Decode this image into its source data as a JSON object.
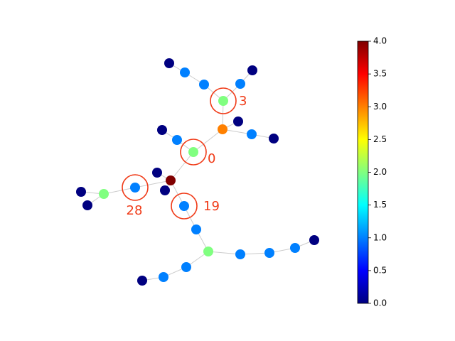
{
  "chart_data": {
    "type": "network",
    "nodes": [
      {
        "value": 4
      },
      {
        "value": 3
      },
      {
        "value": 2,
        "label": "3"
      },
      {
        "value": 2,
        "label": "0"
      },
      {
        "value": 2
      },
      {
        "value": 2
      },
      {
        "value": 1
      },
      {
        "value": 1
      },
      {
        "value": 1
      },
      {
        "value": 1
      },
      {
        "value": 1
      },
      {
        "value": 1,
        "label": "28"
      },
      {
        "value": 1,
        "label": "19"
      },
      {
        "value": 1
      },
      {
        "value": 1
      },
      {
        "value": 1
      },
      {
        "value": 1
      },
      {
        "value": 1
      },
      {
        "value": 1
      },
      {
        "value": 0
      },
      {
        "value": 0
      },
      {
        "value": 0
      },
      {
        "value": 0
      },
      {
        "value": 0
      },
      {
        "value": 0
      },
      {
        "value": 0
      },
      {
        "value": 0
      },
      {
        "value": 0
      },
      {
        "value": 0
      },
      {
        "value": 0
      }
    ],
    "colormap": "jet",
    "colorbar": {
      "lim": [
        0,
        4
      ],
      "ticks": [
        {
          "value": 0,
          "label": "0.0"
        },
        {
          "value": 0.5,
          "label": "0.5"
        },
        {
          "value": 1,
          "label": "1.0"
        },
        {
          "value": 1.5,
          "label": "1.5"
        },
        {
          "value": 2,
          "label": "2.0"
        },
        {
          "value": 2.5,
          "label": "2.5"
        },
        {
          "value": 3,
          "label": "3.0"
        },
        {
          "value": 3.5,
          "label": "3.5"
        },
        {
          "value": 4,
          "label": "4.0"
        }
      ]
    }
  }
}
